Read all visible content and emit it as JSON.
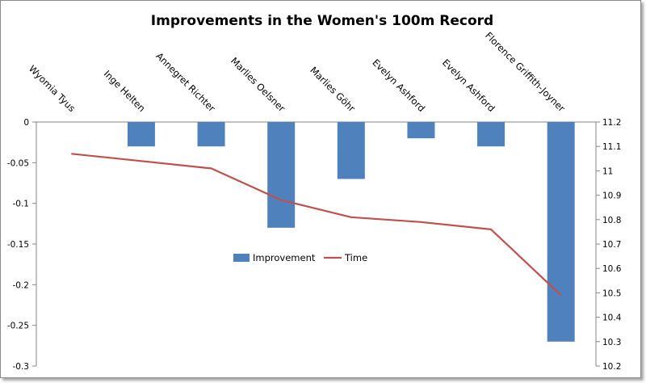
{
  "chart_data": {
    "type": "bar+line",
    "title": "Improvements in the Women's 100m Record",
    "categories": [
      "Wyomia Tyus",
      "Inge Helten",
      "Annegret Richter",
      "Marlies Oelsner",
      "Marlies Göhr",
      "Evelyn Ashford",
      "Evelyn Ashford",
      "Florence Griffith-Joyner"
    ],
    "series": [
      {
        "name": "Improvement",
        "type": "bar",
        "axis": "left",
        "color": "#4F81BD",
        "values": [
          0,
          -0.03,
          -0.03,
          -0.13,
          -0.07,
          -0.02,
          -0.03,
          -0.27
        ]
      },
      {
        "name": "Time",
        "type": "line",
        "axis": "right",
        "color": "#C0504D",
        "values": [
          11.07,
          11.04,
          11.01,
          10.88,
          10.81,
          10.79,
          10.76,
          10.49
        ]
      }
    ],
    "y_left": {
      "ylim": [
        -0.3,
        0
      ],
      "ticks": [
        "0",
        "-0.05",
        "-0.1",
        "-0.15",
        "-0.2",
        "-0.25",
        "-0.3"
      ]
    },
    "y_right": {
      "ylim": [
        10.2,
        11.2
      ],
      "ticks": [
        "11.2",
        "11.1",
        "11",
        "10.9",
        "10.8",
        "10.7",
        "10.6",
        "10.5",
        "10.4",
        "10.3",
        "10.2"
      ]
    },
    "legend": [
      "Improvement",
      "Time"
    ],
    "legend_position": "inside-center",
    "grid": false
  }
}
